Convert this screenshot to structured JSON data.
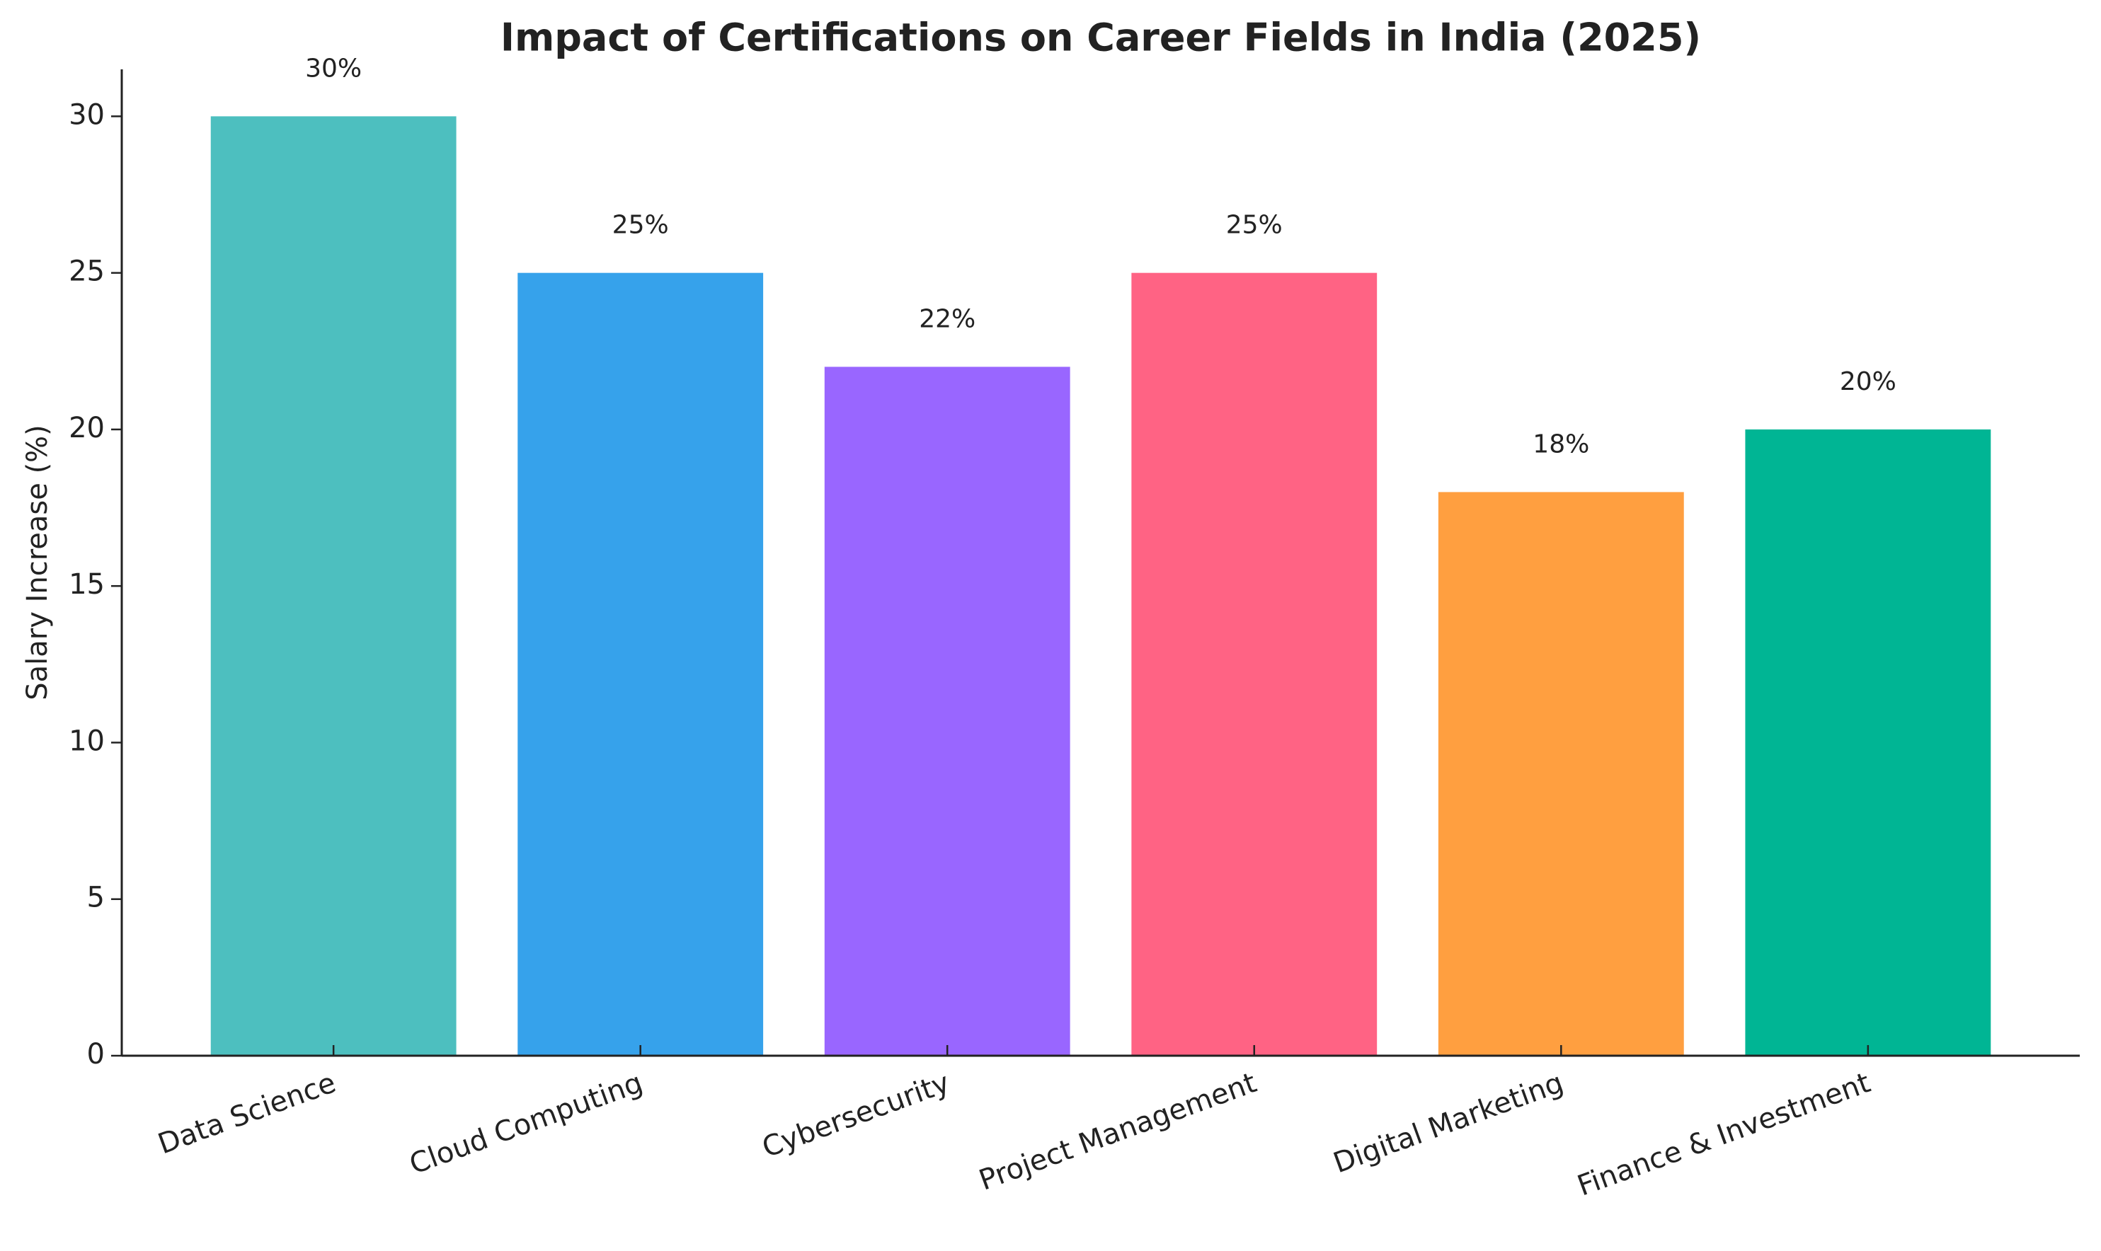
{
  "chart_data": {
    "type": "bar",
    "title": "Impact of Certifications on Career Fields in India (2025)",
    "y_label": "Salary Increase (%)",
    "categories": [
      "Data Science",
      "Cloud Computing",
      "Cybersecurity",
      "Project Management",
      "Digital Marketing",
      "Finance & Investment"
    ],
    "values": [
      30,
      25,
      22,
      25,
      18,
      20
    ],
    "value_labels": [
      "30%",
      "25%",
      "22%",
      "25%",
      "18%",
      "20%"
    ],
    "colors": [
      "#4dbfbf",
      "#36a2eb",
      "#9966ff",
      "#ff6384",
      "#ff9f40",
      "#00b594"
    ],
    "ylim": [
      0,
      31.5
    ],
    "yticks": [
      0,
      5,
      10,
      15,
      20,
      25,
      30
    ],
    "grid": false
  }
}
